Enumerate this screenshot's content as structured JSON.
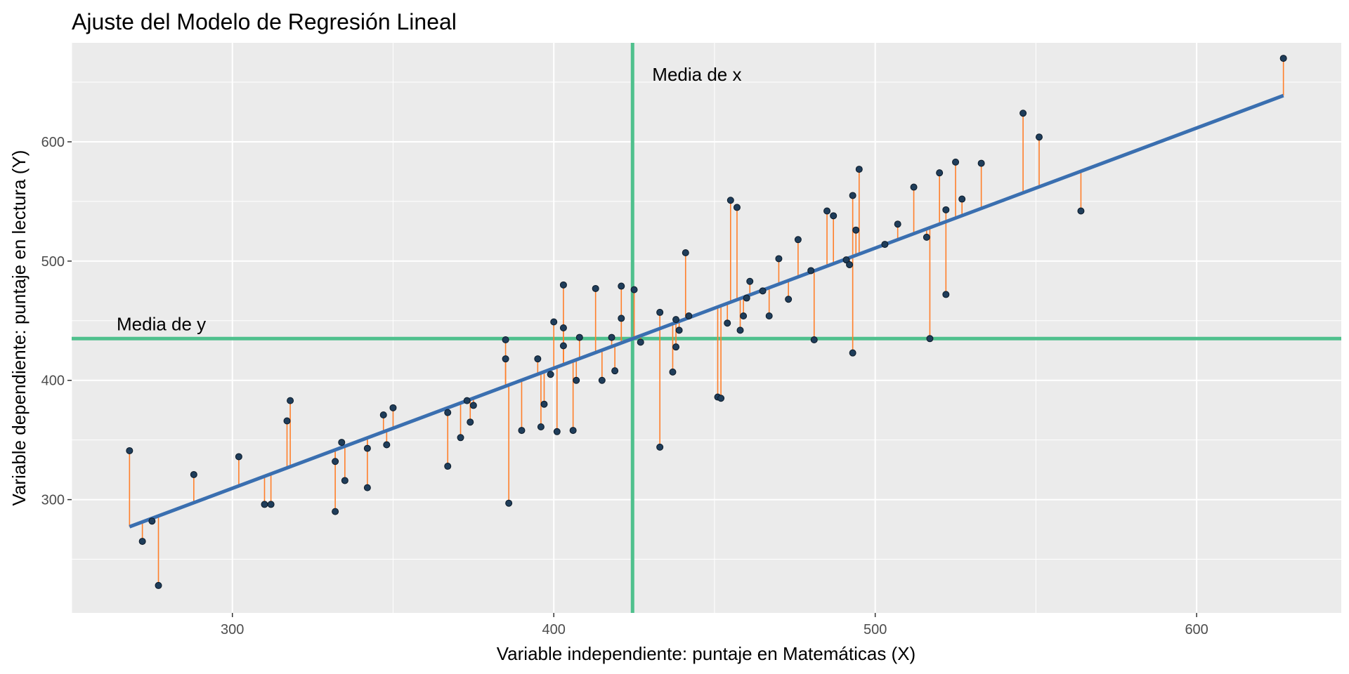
{
  "chart_data": {
    "type": "scatter",
    "title": "Ajuste del Modelo de Regresión Lineal",
    "xlabel": "Variable independiente: puntaje en Matemáticas (X)",
    "ylabel": "Variable dependiente: puntaje en lectura (Y)",
    "xlim": [
      250,
      645
    ],
    "ylim": [
      205,
      683
    ],
    "x_ticks": [
      300,
      400,
      500,
      600
    ],
    "y_ticks": [
      300,
      400,
      500,
      600
    ],
    "grid": true,
    "panel_background": "#ebebeb",
    "colors": {
      "points": "#1f3d5a",
      "residuals": "#ff7f2a",
      "regression_line": "#3a6fb0",
      "mean_lines": "#4fc08d"
    },
    "mean_x": 424.5,
    "mean_y": 435,
    "mean_x_label": "Media de x",
    "mean_y_label": "Media de y",
    "regression": {
      "intercept": 7.4,
      "slope": 1.007
    },
    "points": [
      [
        268,
        341
      ],
      [
        272,
        265
      ],
      [
        275,
        282
      ],
      [
        277,
        228
      ],
      [
        288,
        321
      ],
      [
        302,
        336
      ],
      [
        310,
        296
      ],
      [
        312,
        296
      ],
      [
        317,
        366
      ],
      [
        318,
        383
      ],
      [
        332,
        290
      ],
      [
        332,
        332
      ],
      [
        334,
        348
      ],
      [
        335,
        316
      ],
      [
        342,
        343
      ],
      [
        342,
        310
      ],
      [
        347,
        371
      ],
      [
        348,
        346
      ],
      [
        350,
        377
      ],
      [
        367,
        373
      ],
      [
        367,
        328
      ],
      [
        371,
        352
      ],
      [
        373,
        383
      ],
      [
        374,
        365
      ],
      [
        375,
        379
      ],
      [
        385,
        434
      ],
      [
        385,
        418
      ],
      [
        386,
        297
      ],
      [
        390,
        358
      ],
      [
        395,
        418
      ],
      [
        396,
        361
      ],
      [
        397,
        380
      ],
      [
        399,
        405
      ],
      [
        400,
        449
      ],
      [
        401,
        357
      ],
      [
        403,
        480
      ],
      [
        403,
        444
      ],
      [
        403,
        429
      ],
      [
        406,
        358
      ],
      [
        407,
        400
      ],
      [
        408,
        436
      ],
      [
        413,
        477
      ],
      [
        415,
        400
      ],
      [
        418,
        436
      ],
      [
        419,
        408
      ],
      [
        421,
        479
      ],
      [
        421,
        452
      ],
      [
        425,
        476
      ],
      [
        427,
        432
      ],
      [
        433,
        457
      ],
      [
        433,
        344
      ],
      [
        437,
        407
      ],
      [
        438,
        428
      ],
      [
        438,
        451
      ],
      [
        439,
        442
      ],
      [
        441,
        507
      ],
      [
        442,
        454
      ],
      [
        451,
        386
      ],
      [
        452,
        385
      ],
      [
        454,
        448
      ],
      [
        455,
        551
      ],
      [
        457,
        545
      ],
      [
        458,
        442
      ],
      [
        459,
        454
      ],
      [
        460,
        469
      ],
      [
        461,
        483
      ],
      [
        465,
        475
      ],
      [
        467,
        454
      ],
      [
        470,
        502
      ],
      [
        473,
        468
      ],
      [
        476,
        518
      ],
      [
        480,
        492
      ],
      [
        481,
        434
      ],
      [
        485,
        542
      ],
      [
        487,
        538
      ],
      [
        491,
        501
      ],
      [
        492,
        497
      ],
      [
        493,
        423
      ],
      [
        493,
        555
      ],
      [
        494,
        526
      ],
      [
        495,
        577
      ],
      [
        503,
        514
      ],
      [
        507,
        531
      ],
      [
        512,
        562
      ],
      [
        516,
        520
      ],
      [
        517,
        435
      ],
      [
        520,
        574
      ],
      [
        522,
        543
      ],
      [
        522,
        472
      ],
      [
        525,
        583
      ],
      [
        527,
        552
      ],
      [
        533,
        582
      ],
      [
        546,
        624
      ],
      [
        551,
        604
      ],
      [
        564,
        542
      ],
      [
        627,
        670
      ]
    ]
  }
}
